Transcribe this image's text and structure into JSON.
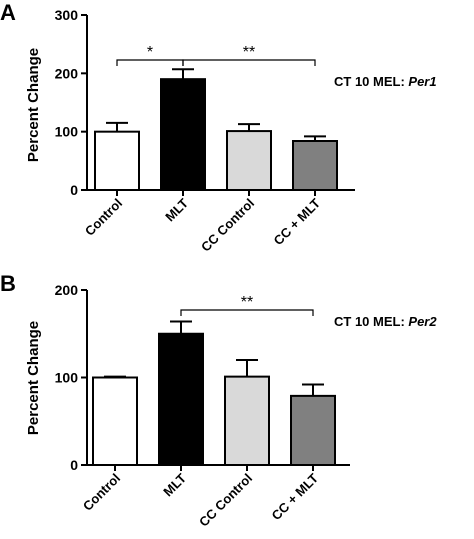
{
  "colors": {
    "control": "#ffffff",
    "mlt": "#000000",
    "cc_control": "#d9d9d9",
    "cc_mlt": "#808080",
    "stroke": "#000000"
  },
  "chart_data": [
    {
      "type": "bar",
      "panel": "A",
      "ylabel": "Percent Change",
      "categories": [
        "Control",
        "MLT",
        "CC Control",
        "CC + MLT"
      ],
      "values": [
        100,
        190,
        101,
        84
      ],
      "errors": [
        15,
        17,
        12,
        8
      ],
      "ylim": [
        0,
        300
      ],
      "yticks": [
        0,
        100,
        200,
        300
      ],
      "annotation_prefix": "CT 10 MEL: ",
      "annotation_gene": "Per1",
      "significance": [
        {
          "from": 0,
          "to": 1,
          "label": "*"
        },
        {
          "from": 1,
          "to": 3,
          "label": "**"
        }
      ]
    },
    {
      "type": "bar",
      "panel": "B",
      "ylabel": "Percent Change",
      "categories": [
        "Control",
        "MLT",
        "CC Control",
        "CC + MLT"
      ],
      "values": [
        100,
        150,
        101,
        79
      ],
      "errors": [
        1,
        14,
        19,
        13
      ],
      "ylim": [
        0,
        200
      ],
      "yticks": [
        0,
        100,
        200
      ],
      "annotation_prefix": "CT 10 MEL: ",
      "annotation_gene": "Per2",
      "significance": [
        {
          "from": 1,
          "to": 3,
          "label": "**"
        }
      ]
    }
  ]
}
